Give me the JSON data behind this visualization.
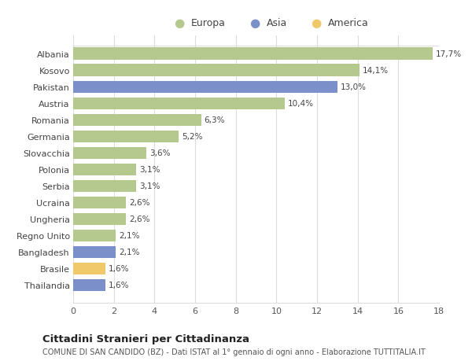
{
  "countries": [
    "Albania",
    "Kosovo",
    "Pakistan",
    "Austria",
    "Romania",
    "Germania",
    "Slovacchia",
    "Polonia",
    "Serbia",
    "Ucraina",
    "Ungheria",
    "Regno Unito",
    "Bangladesh",
    "Brasile",
    "Thailandia"
  ],
  "values": [
    17.7,
    14.1,
    13.0,
    10.4,
    6.3,
    5.2,
    3.6,
    3.1,
    3.1,
    2.6,
    2.6,
    2.1,
    2.1,
    1.6,
    1.6
  ],
  "labels": [
    "17,7%",
    "14,1%",
    "13,0%",
    "10,4%",
    "6,3%",
    "5,2%",
    "3,6%",
    "3,1%",
    "3,1%",
    "2,6%",
    "2,6%",
    "2,1%",
    "2,1%",
    "1,6%",
    "1,6%"
  ],
  "continents": [
    "Europa",
    "Europa",
    "Asia",
    "Europa",
    "Europa",
    "Europa",
    "Europa",
    "Europa",
    "Europa",
    "Europa",
    "Europa",
    "Europa",
    "Asia",
    "America",
    "Asia"
  ],
  "colors": {
    "Europa": "#b5c98e",
    "Asia": "#7b8fca",
    "America": "#f0ca6a"
  },
  "legend_colors": {
    "Europa": "#b5c98e",
    "Asia": "#7b8fca",
    "America": "#f0ca6a"
  },
  "xlim": [
    0,
    18
  ],
  "xticks": [
    0,
    2,
    4,
    6,
    8,
    10,
    12,
    14,
    16,
    18
  ],
  "title": "Cittadini Stranieri per Cittadinanza",
  "subtitle": "COMUNE DI SAN CANDIDO (BZ) - Dati ISTAT al 1° gennaio di ogni anno - Elaborazione TUTTITALIA.IT",
  "background_color": "#ffffff",
  "grid_color": "#dddddd"
}
